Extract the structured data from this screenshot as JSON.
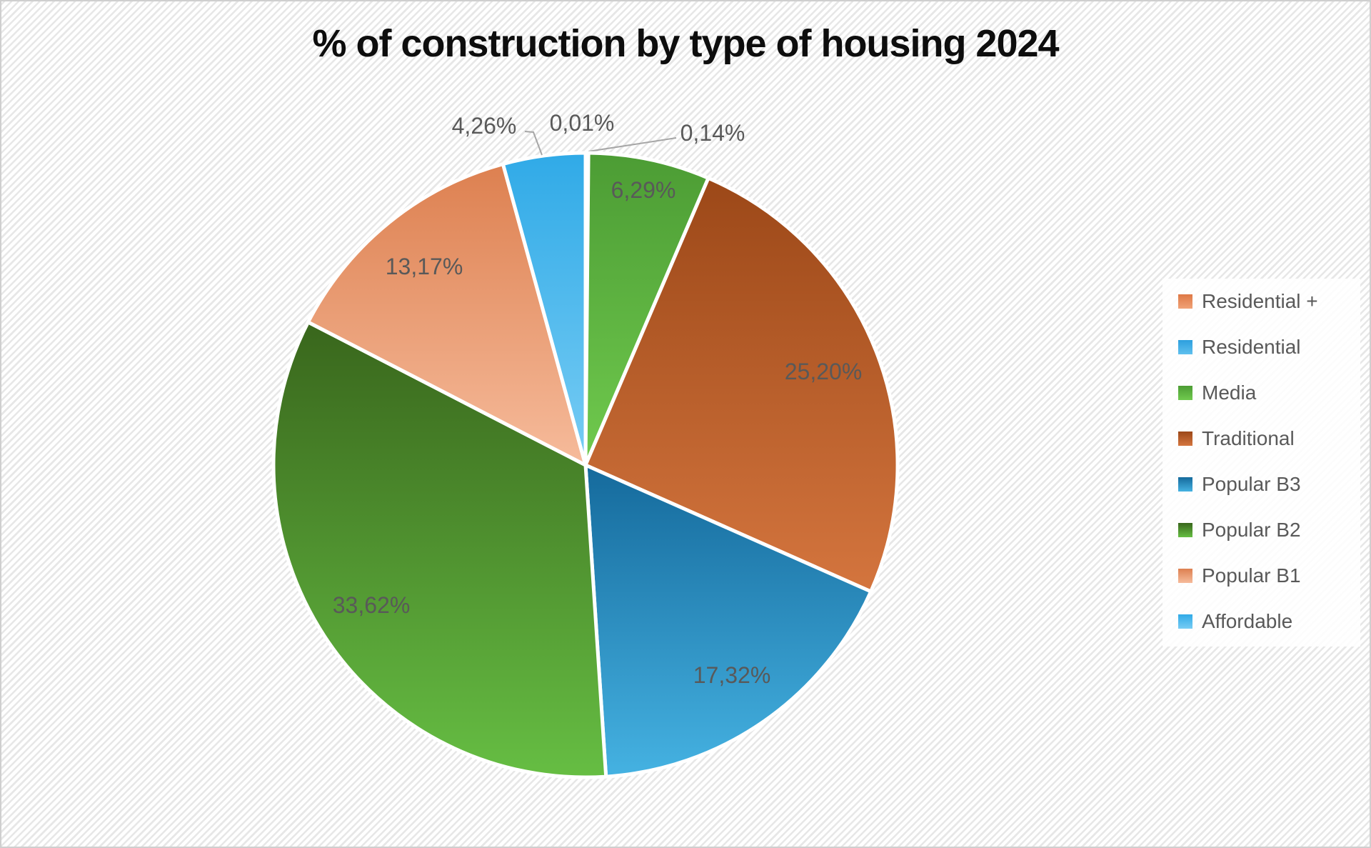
{
  "title": "% of construction by type of housing 2024",
  "chart_data": {
    "type": "pie",
    "title": "% of construction by type of housing 2024",
    "unit": "%",
    "decimal_separator": ",",
    "start_angle_deg": 0,
    "direction": "clockwise",
    "legend_position": "right",
    "total": 100,
    "slices": [
      {
        "name": "Residential +",
        "value": 0.01,
        "label": "0,01%",
        "color_top": "#DE7845",
        "color_bottom": "#F0A277"
      },
      {
        "name": "Residential",
        "value": 0.14,
        "label": "0,14%",
        "color_top": "#2D9FDE",
        "color_bottom": "#5FC0EE"
      },
      {
        "name": "Media",
        "value": 6.29,
        "label": "6,29%",
        "color_top": "#4C9C34",
        "color_bottom": "#70CA4E"
      },
      {
        "name": "Traditional",
        "value": 25.2,
        "label": "25,20%",
        "color_top": "#9C4818",
        "color_bottom": "#D4753E"
      },
      {
        "name": "Popular B3",
        "value": 17.32,
        "label": "17,32%",
        "color_top": "#156A9C",
        "color_bottom": "#45B2E2"
      },
      {
        "name": "Popular B2",
        "value": 33.62,
        "label": "33,62%",
        "color_top": "#39661C",
        "color_bottom": "#66BE43"
      },
      {
        "name": "Popular B1",
        "value": 13.17,
        "label": "13,17%",
        "color_top": "#DD8050",
        "color_bottom": "#F6BB9B"
      },
      {
        "name": "Affordable",
        "value": 4.26,
        "label": "4,26%",
        "color_top": "#30AAE7",
        "color_bottom": "#77CCF4"
      }
    ]
  },
  "colors": {
    "title_text": "#0D0D0D",
    "data_label_text": "#595959",
    "legend_text": "#595959",
    "leader_line": "#A6A6A6",
    "slice_separator": "#FFFFFF",
    "legend_background": "#FFFFFF"
  }
}
